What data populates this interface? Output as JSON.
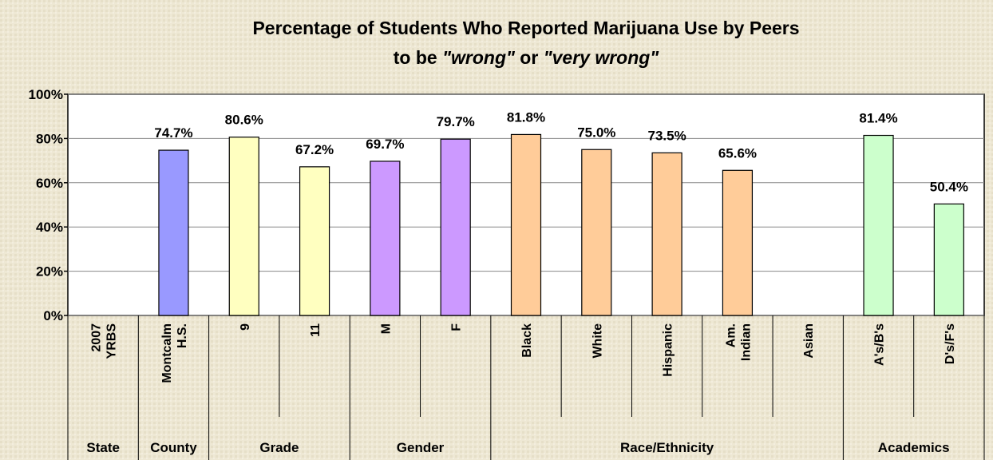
{
  "chart_data": {
    "type": "bar",
    "title": "Percentage of Students Who Reported Marijuana Use by Peers",
    "subtitle": [
      "to be ",
      "\"wrong\"",
      " or ",
      "\"very wrong\""
    ],
    "categories": [
      [
        "2007",
        "YRBS"
      ],
      [
        "Montcalm",
        "H.S."
      ],
      [
        "9"
      ],
      [
        "11"
      ],
      [
        "M"
      ],
      [
        "F"
      ],
      [
        "Black"
      ],
      [
        "White"
      ],
      [
        "Hispanic"
      ],
      [
        "Am.",
        "Indian"
      ],
      [
        "Asian"
      ],
      [
        "A's/B's"
      ],
      [
        "D's/F's"
      ]
    ],
    "values": [
      null,
      74.7,
      80.6,
      67.2,
      69.7,
      79.7,
      81.8,
      75.0,
      73.5,
      65.6,
      null,
      81.4,
      50.4
    ],
    "value_labels": [
      null,
      "74.7%",
      "80.6%",
      "67.2%",
      "69.7%",
      "79.7%",
      "81.8%",
      "75.0%",
      "73.5%",
      "65.6%",
      null,
      "81.4%",
      "50.4%"
    ],
    "colors": [
      null,
      "#9999ff",
      "#ffffc0",
      "#ffffc0",
      "#cc99ff",
      "#cc99ff",
      "#ffcc99",
      "#ffcc99",
      "#ffcc99",
      "#ffcc99",
      null,
      "#ccffcc",
      "#ccffcc"
    ],
    "groups": [
      "State",
      "County",
      "Grade",
      "Gender",
      "Race/Ethnicity",
      "Academics"
    ],
    "ylim": [
      0,
      100
    ],
    "yticks": [
      {
        "value": 0,
        "label": "0%"
      },
      {
        "value": 20,
        "label": "20%"
      },
      {
        "value": 40,
        "label": "40%"
      },
      {
        "value": 60,
        "label": "60%"
      },
      {
        "value": 80,
        "label": "80%"
      },
      {
        "value": 100,
        "label": "100%"
      }
    ],
    "grid": true
  }
}
